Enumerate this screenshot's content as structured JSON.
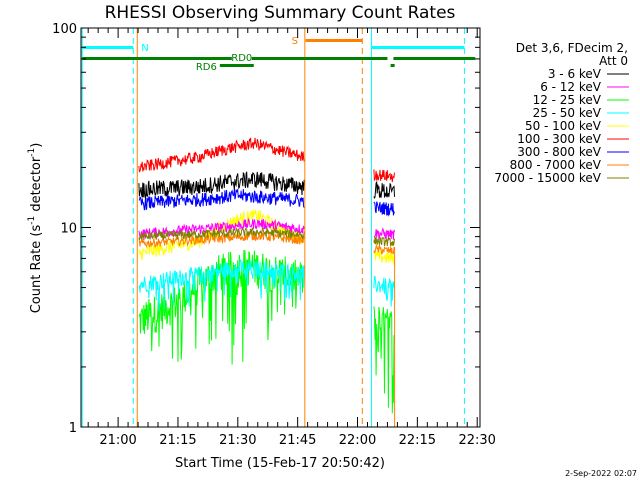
{
  "chart_data": {
    "type": "line",
    "title": "RHESSI Observing Summary Count Rates",
    "xlabel": "Start Time (15-Feb-17 20:50:42)",
    "ylabel_main": "Count Rate (s",
    "ylabel_exp1": "-1",
    "ylabel_mid": " detector",
    "ylabel_exp2": "-1",
    "ylabel_end": ")",
    "y_scale": "log",
    "ylim": [
      1,
      100
    ],
    "y_ticks": [
      {
        "value": 1,
        "label": "1"
      },
      {
        "value": 10,
        "label": "10"
      },
      {
        "value": 100,
        "label": "100"
      }
    ],
    "xlim_minutes": [
      50.7,
      150.7
    ],
    "x_ticks": [
      {
        "minute": 60,
        "label": "21:00"
      },
      {
        "minute": 75,
        "label": "21:15"
      },
      {
        "minute": 90,
        "label": "21:30"
      },
      {
        "minute": 105,
        "label": "21:45"
      },
      {
        "minute": 120,
        "label": "22:00"
      },
      {
        "minute": 135,
        "label": "22:15"
      },
      {
        "minute": 150,
        "label": "22:30"
      }
    ],
    "legend_header": [
      "Det 3,6, FDecim 2,",
      "Att 0"
    ],
    "data_segments": [
      [
        65.2,
        106.7
      ],
      [
        124.1,
        129.3
      ]
    ],
    "series": [
      {
        "name": "3 - 6 keV",
        "color": "#000000",
        "levels": [
          [
            65.2,
            15.5
          ],
          [
            80,
            16
          ],
          [
            88,
            17
          ],
          [
            95,
            17.5
          ],
          [
            102,
            16.5
          ],
          [
            106.7,
            16
          ],
          [
            124.1,
            15.5
          ],
          [
            129.3,
            15
          ]
        ],
        "noise": 0.1
      },
      {
        "name": "6 - 12 keV",
        "color": "#ff00ff",
        "levels": [
          [
            65.2,
            9.3
          ],
          [
            85,
            10
          ],
          [
            95,
            10.5
          ],
          [
            106.7,
            9.8
          ],
          [
            124.1,
            9.4
          ],
          [
            129.3,
            9.2
          ]
        ],
        "noise": 0.06
      },
      {
        "name": "12 - 25 keV",
        "color": "#00ff00",
        "levels": [
          [
            65.2,
            3.4
          ],
          [
            75,
            4.3
          ],
          [
            85,
            6
          ],
          [
            92,
            6.5
          ],
          [
            100,
            6
          ],
          [
            106.7,
            5.5
          ],
          [
            124.1,
            3.4
          ],
          [
            129.3,
            3.2
          ]
        ],
        "noise": 0.22
      },
      {
        "name": "25 - 50 keV",
        "color": "#00ffff",
        "levels": [
          [
            65.2,
            5.2
          ],
          [
            80,
            5.8
          ],
          [
            90,
            6.3
          ],
          [
            100,
            6.1
          ],
          [
            106.7,
            5.9
          ],
          [
            124.1,
            5.2
          ],
          [
            129.3,
            5.0
          ]
        ],
        "noise": 0.1
      },
      {
        "name": "50 - 100 keV",
        "color": "#ffff00",
        "levels": [
          [
            65.2,
            7.4
          ],
          [
            80,
            8.5
          ],
          [
            90,
            11
          ],
          [
            95,
            11.5
          ],
          [
            100,
            10
          ],
          [
            106.7,
            8.8
          ],
          [
            124.1,
            7.2
          ],
          [
            129.3,
            7.0
          ]
        ],
        "noise": 0.08
      },
      {
        "name": "100 - 300 keV",
        "color": "#ff0000",
        "levels": [
          [
            65.2,
            20
          ],
          [
            80,
            22.5
          ],
          [
            88,
            25
          ],
          [
            94,
            26.5
          ],
          [
            100,
            24.5
          ],
          [
            106.7,
            22.5
          ],
          [
            124.1,
            18.5
          ],
          [
            129.3,
            18
          ]
        ],
        "noise": 0.07
      },
      {
        "name": "300 - 800 keV",
        "color": "#0000ff",
        "levels": [
          [
            65.2,
            13.2
          ],
          [
            80,
            13.8
          ],
          [
            90,
            14.5
          ],
          [
            100,
            14
          ],
          [
            106.7,
            13.6
          ],
          [
            124.1,
            12.6
          ],
          [
            129.3,
            12.4
          ]
        ],
        "noise": 0.08
      },
      {
        "name": "800 - 7000 keV",
        "color": "#ff8000",
        "levels": [
          [
            65.2,
            8.3
          ],
          [
            85,
            8.8
          ],
          [
            95,
            9.1
          ],
          [
            106.7,
            8.6
          ],
          [
            124.1,
            7.8
          ],
          [
            129.3,
            7.6
          ]
        ],
        "noise": 0.05
      },
      {
        "name": "7000 - 15000 keV",
        "color": "#808000",
        "levels": [
          [
            65.2,
            9.0
          ],
          [
            95,
            9.5
          ],
          [
            106.7,
            9.2
          ],
          [
            124.1,
            8.6
          ],
          [
            129.3,
            8.4
          ]
        ],
        "noise": 0.05
      }
    ],
    "markers": {
      "cyan_solid": [
        51,
        123.5
      ],
      "cyan_dashed": [
        63.8,
        146.8
      ],
      "orange_solid": [
        64.8,
        106.8
      ],
      "orange_dashed": [
        121.2
      ],
      "orange_mid": [
        129.3
      ],
      "night_bars": [
        [
          51,
          63.8,
          "N"
        ],
        [
          123.5,
          146.8,
          ""
        ]
      ],
      "saa_bar": [
        107,
        121.2,
        "S"
      ],
      "rd0_bar": [
        51,
        149.5,
        "RD0"
      ],
      "rd6_bar": [
        85.5,
        94,
        "RD6"
      ],
      "rd0_gap": [
        127.5,
        129
      ]
    },
    "footer_date": "2-Sep-2022 02:07"
  }
}
